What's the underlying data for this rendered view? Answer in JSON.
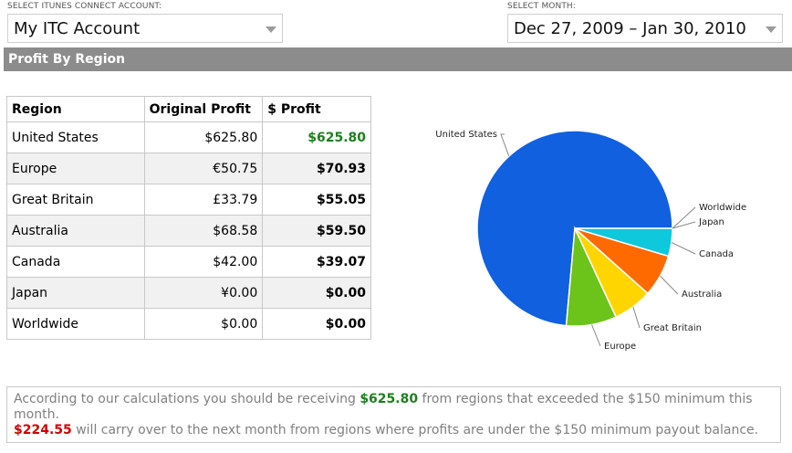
{
  "account_select": {
    "label": "SELECT iTUNES CONNECT ACCOUNT:",
    "value": "My ITC Account"
  },
  "month_select": {
    "label": "SELECT MONTH:",
    "value": "Dec 27, 2009 – Jan 30, 2010"
  },
  "section": {
    "title": "Profit By Region"
  },
  "table": {
    "headers": [
      "Region",
      "Original Profit",
      "$ Profit"
    ],
    "rows": [
      {
        "region": "United States",
        "original": "$625.80",
        "profit": "$625.80"
      },
      {
        "region": "Europe",
        "original": "€50.75",
        "profit": "$70.93"
      },
      {
        "region": "Great Britain",
        "original": "£33.79",
        "profit": "$55.05"
      },
      {
        "region": "Australia",
        "original": "$68.58",
        "profit": "$59.50"
      },
      {
        "region": "Canada",
        "original": "$42.00",
        "profit": "$39.07"
      },
      {
        "region": "Japan",
        "original": "¥0.00",
        "profit": "$0.00"
      },
      {
        "region": "Worldwide",
        "original": "$0.00",
        "profit": "$0.00"
      }
    ]
  },
  "chart_data": {
    "type": "pie",
    "categories": [
      "United States",
      "Europe",
      "Great Britain",
      "Australia",
      "Canada",
      "Japan",
      "Worldwide"
    ],
    "values": [
      625.8,
      70.93,
      55.05,
      59.5,
      39.07,
      0.0,
      0.0
    ],
    "colors": [
      "#1060e0",
      "#6cc41a",
      "#ffd500",
      "#ff6a00",
      "#0ec8dc",
      "#e0e0e0",
      "#e0e0e0"
    ]
  },
  "summary": {
    "line1_before": "According to our calculations you should be receiving ",
    "line1_amount": "$625.80",
    "line1_after": " from regions that exceeded the $150 minimum this month.",
    "line2_amount": "$224.55",
    "line2_after": " will carry over to the next month from regions where profits are under the $150 minimum payout balance."
  },
  "colors": {
    "positive": "#1e7f1e",
    "negative": "#d00000",
    "section_bar": "#8c8c8c"
  }
}
